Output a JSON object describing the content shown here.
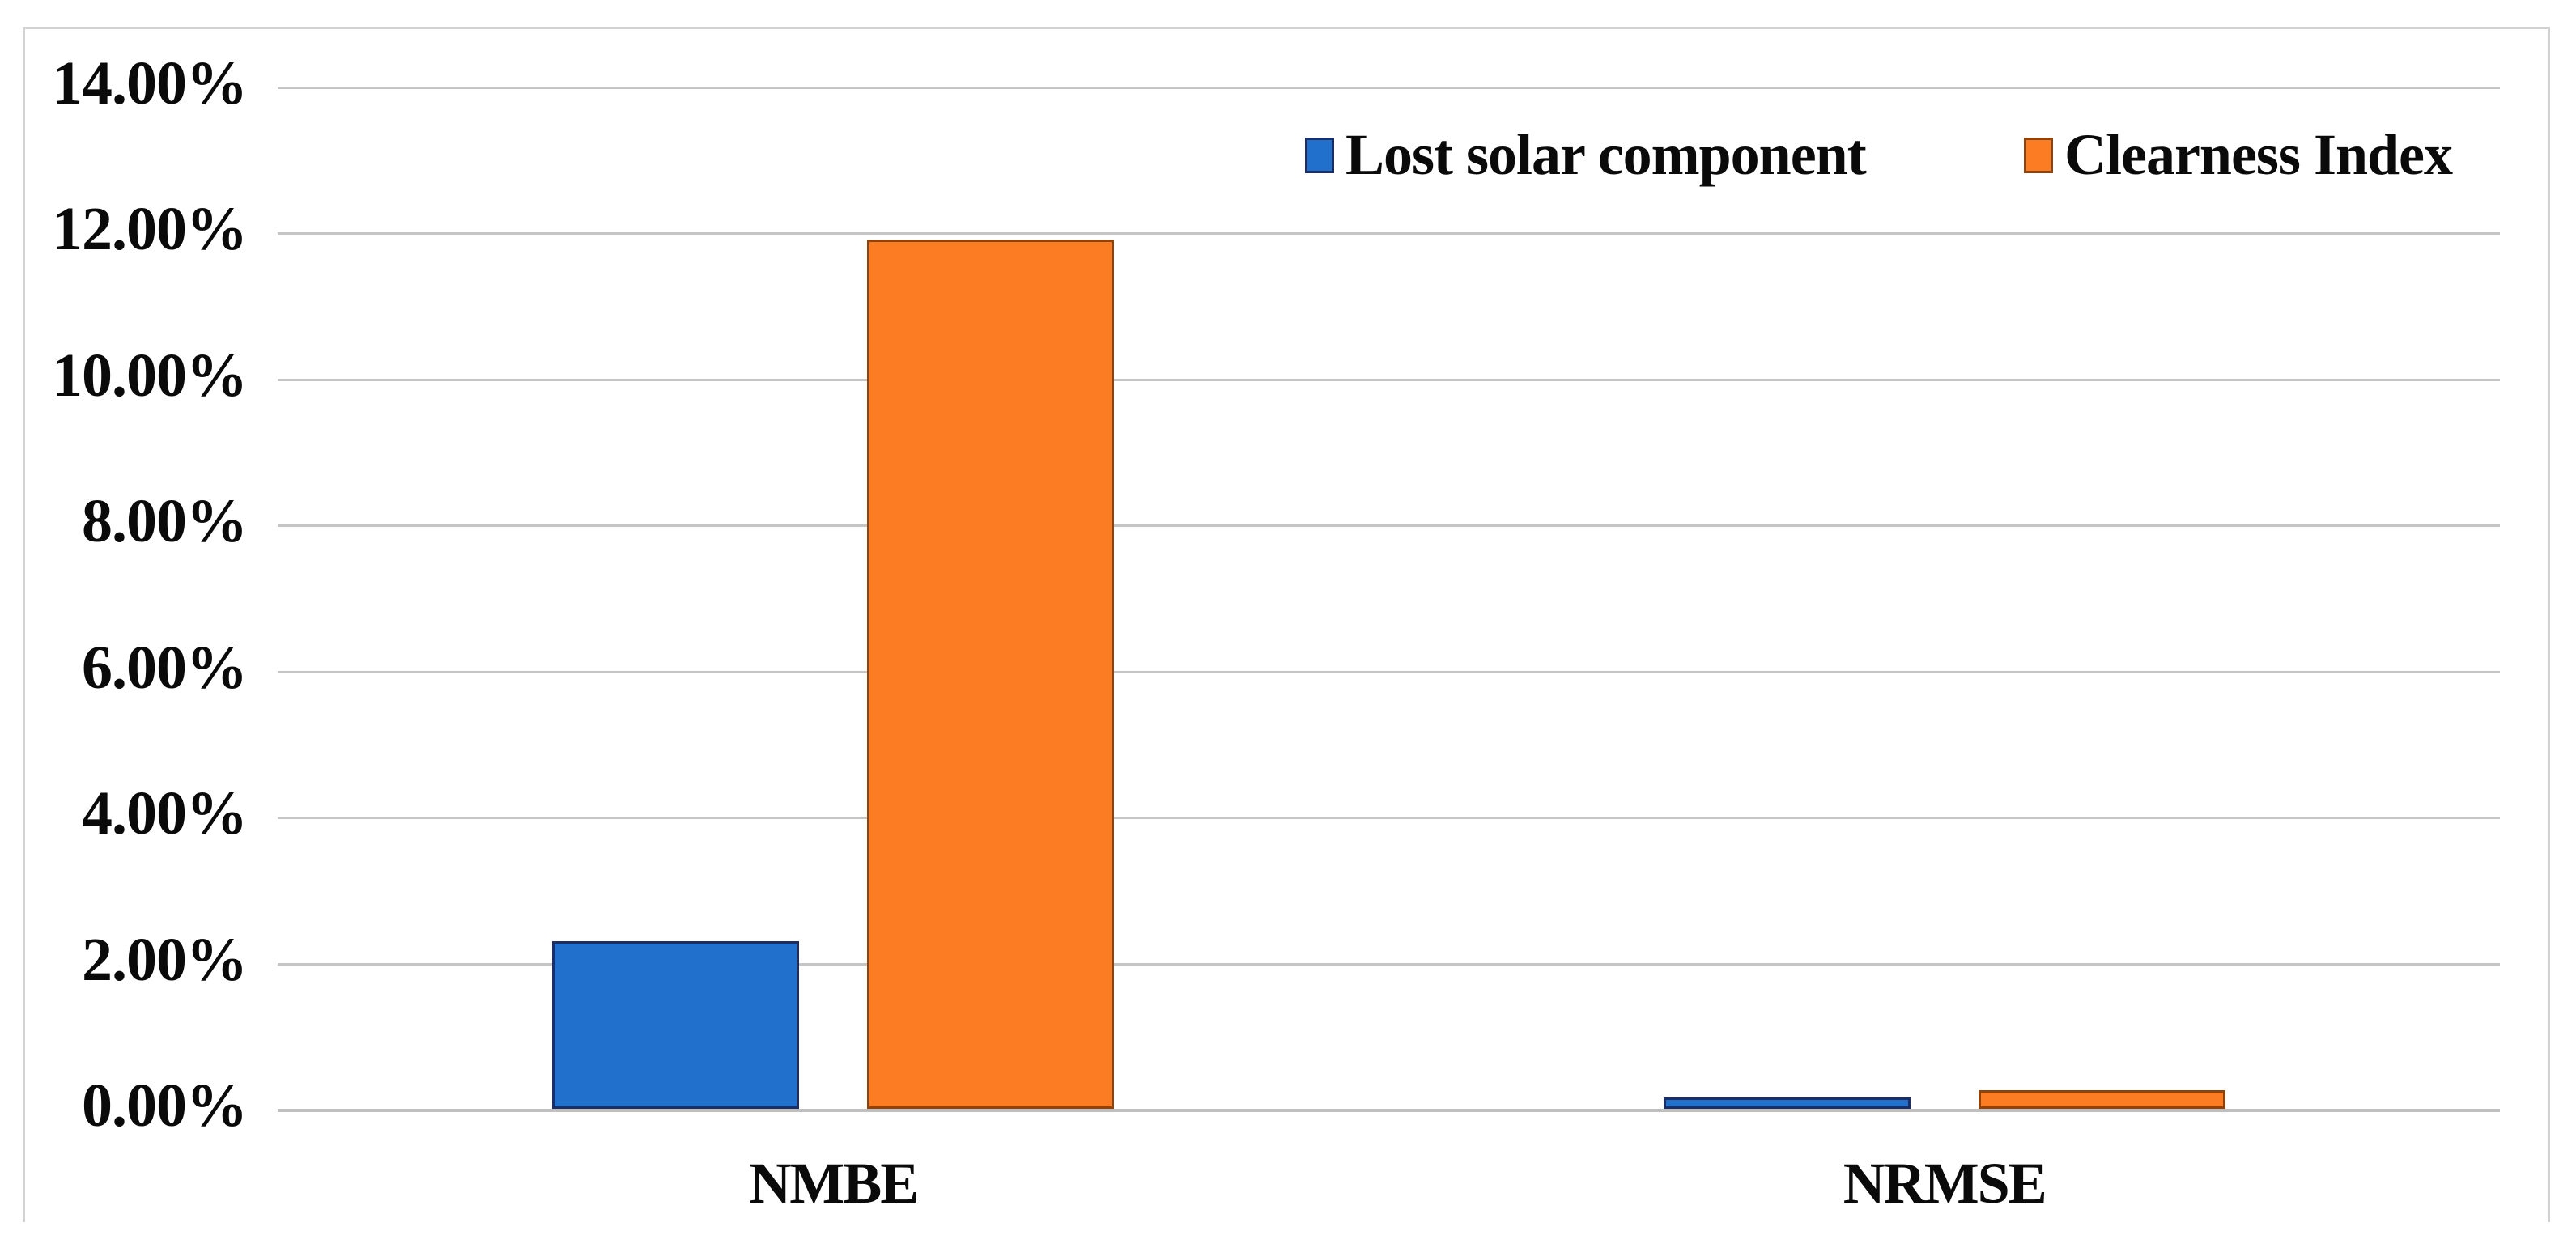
{
  "chart_data": {
    "type": "bar",
    "title": "",
    "categories": [
      "NMBE",
      "NRMSE"
    ],
    "series": [
      {
        "name": "Lost solar component",
        "values": [
          2.3,
          0.15
        ],
        "fill": "#2171CC",
        "border": "#1C2E63"
      },
      {
        "name": "Clearness Index",
        "values": [
          11.9,
          0.25
        ],
        "fill": "#FC7C24",
        "border": "#8C430D"
      }
    ],
    "y_axis": {
      "tick_labels": [
        "0.00%",
        "2.00%",
        "4.00%",
        "6.00%",
        "8.00%",
        "10.00%",
        "12.00%",
        "14.00%"
      ],
      "min": 0,
      "max": 14,
      "step": 2,
      "unit": "%"
    },
    "xlabel": "",
    "ylabel": "",
    "gridlines": true,
    "legend_position": "top-right-inside",
    "colors": {
      "gridline": "#c5c5c5",
      "frame": "#d2d2d2",
      "text": "#0a0a0a",
      "background": "#ffffff"
    }
  }
}
